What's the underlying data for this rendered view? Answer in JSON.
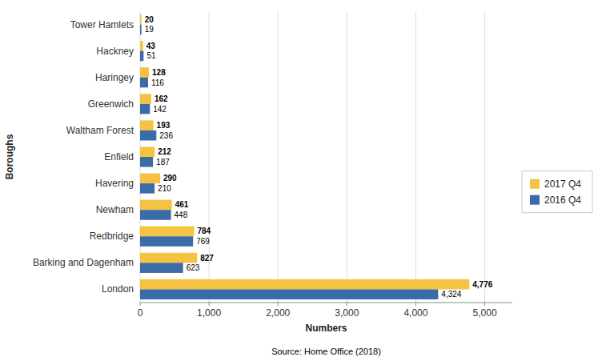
{
  "chart_data": {
    "type": "bar",
    "orientation": "horizontal",
    "categories": [
      "London",
      "Barking and Dagenham",
      "Redbridge",
      "Newham",
      "Havering",
      "Enfield",
      "Waltham Forest",
      "Greenwich",
      "Haringey",
      "Hackney",
      "Tower Hamlets"
    ],
    "series": [
      {
        "name": "2017 Q4",
        "color": "#f5c242",
        "values": [
          4776,
          827,
          784,
          461,
          290,
          212,
          193,
          162,
          128,
          43,
          20
        ],
        "value_labels": [
          "4,776",
          "827",
          "784",
          "461",
          "290",
          "212",
          "193",
          "162",
          "128",
          "43",
          "20"
        ]
      },
      {
        "name": "2016 Q4",
        "color": "#3b6ca8",
        "values": [
          4324,
          623,
          769,
          448,
          210,
          187,
          236,
          142,
          116,
          51,
          19
        ],
        "value_labels": [
          "4,324",
          "623",
          "769",
          "448",
          "210",
          "187",
          "236",
          "142",
          "116",
          "51",
          "19"
        ]
      }
    ],
    "xlabel": "Numbers",
    "ylabel": "Boroughs",
    "xlim": [
      0,
      5400
    ],
    "xticks": [
      0,
      {
        "value": 1000,
        "label": "1,000"
      },
      {
        "value": 2000,
        "label": "2,000"
      },
      {
        "value": 3000,
        "label": "3,000"
      },
      {
        "value": 4000,
        "label": "4,000"
      },
      {
        "value": 5000,
        "label": "5,000"
      }
    ],
    "grid": true,
    "legend": "right",
    "data_labels": true,
    "annotations": [
      "Source: Home Office (2018)"
    ]
  }
}
